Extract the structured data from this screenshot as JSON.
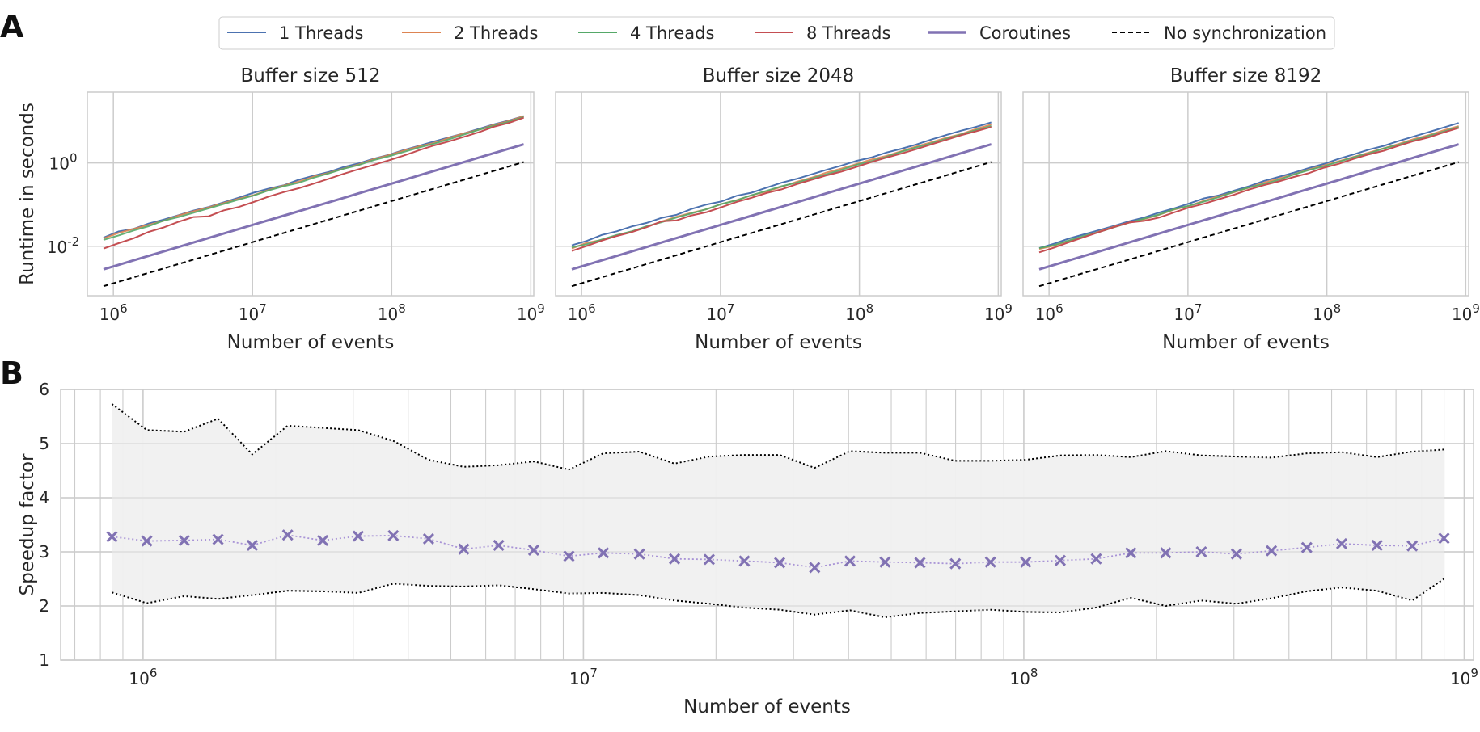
{
  "panel_labels": [
    "A",
    "B"
  ],
  "legend": [
    {
      "label": "1 Threads",
      "color": "#4c72b0",
      "style": "solid"
    },
    {
      "label": "2 Threads",
      "color": "#dd8452",
      "style": "solid"
    },
    {
      "label": "4 Threads",
      "color": "#55a868",
      "style": "solid"
    },
    {
      "label": "8 Threads",
      "color": "#c44e52",
      "style": "solid"
    },
    {
      "label": "Coroutines",
      "color": "#8172b3",
      "style": "solid-thick"
    },
    {
      "label": "No synchronization",
      "color": "#000000",
      "style": "dashed"
    }
  ],
  "chart_data": [
    {
      "type": "line",
      "title": "Buffer size 512",
      "xlabel": "Number of events",
      "ylabel": "Runtime in seconds",
      "xscale": "log",
      "yscale": "log",
      "xlim": [
        650000.0,
        1050000000.0
      ],
      "ylim": [
        0.00065,
        50
      ],
      "xticks": [
        {
          "value": 1000000.0,
          "label": "10^6"
        },
        {
          "value": 10000000.0,
          "label": "10^7"
        },
        {
          "value": 100000000.0,
          "label": "10^8"
        },
        {
          "value": 1000000000.0,
          "label": "10^9"
        }
      ],
      "yticks": [
        {
          "value": 0.01,
          "label": "10^-2"
        },
        {
          "value": 1,
          "label": "10^0"
        }
      ],
      "grid": true,
      "x_range": [
        850000.0,
        890000000.0
      ],
      "series": [
        {
          "name": "1 Threads",
          "y_range": [
            0.017,
            13.5
          ]
        },
        {
          "name": "2 Threads",
          "y_range": [
            0.016,
            13
          ]
        },
        {
          "name": "4 Threads",
          "y_range": [
            0.015,
            12.5
          ]
        },
        {
          "name": "8 Threads",
          "y_range": [
            0.009,
            12
          ]
        },
        {
          "name": "Coroutines",
          "y_range": [
            0.0028,
            2.8
          ]
        },
        {
          "name": "No synchronization",
          "y_range": [
            0.0011,
            1.05
          ]
        }
      ]
    },
    {
      "type": "line",
      "title": "Buffer size 2048",
      "xlabel": "Number of events",
      "xscale": "log",
      "yscale": "log",
      "xlim": [
        650000.0,
        1050000000.0
      ],
      "ylim": [
        0.00065,
        50
      ],
      "xticks": [
        {
          "value": 1000000.0,
          "label": "10^6"
        },
        {
          "value": 10000000.0,
          "label": "10^7"
        },
        {
          "value": 100000000.0,
          "label": "10^8"
        },
        {
          "value": 1000000000.0,
          "label": "10^9"
        }
      ],
      "grid": true,
      "x_range": [
        850000.0,
        890000000.0
      ],
      "series": [
        {
          "name": "1 Threads",
          "y_range": [
            0.011,
            9.5
          ]
        },
        {
          "name": "2 Threads",
          "y_range": [
            0.009,
            8.2
          ]
        },
        {
          "name": "4 Threads",
          "y_range": [
            0.009,
            7.8
          ]
        },
        {
          "name": "8 Threads",
          "y_range": [
            0.0075,
            7.4
          ]
        },
        {
          "name": "Coroutines",
          "y_range": [
            0.0028,
            2.8
          ]
        },
        {
          "name": "No synchronization",
          "y_range": [
            0.0011,
            1.05
          ]
        }
      ]
    },
    {
      "type": "line",
      "title": "Buffer size 8192",
      "xlabel": "Number of events",
      "xscale": "log",
      "yscale": "log",
      "xlim": [
        650000.0,
        1050000000.0
      ],
      "ylim": [
        0.00065,
        50
      ],
      "xticks": [
        {
          "value": 1000000.0,
          "label": "10^6"
        },
        {
          "value": 10000000.0,
          "label": "10^7"
        },
        {
          "value": 100000000.0,
          "label": "10^8"
        },
        {
          "value": 1000000000.0,
          "label": "10^9"
        }
      ],
      "grid": true,
      "x_range": [
        850000.0,
        890000000.0
      ],
      "series": [
        {
          "name": "1 Threads",
          "y_range": [
            0.009,
            9
          ]
        },
        {
          "name": "2 Threads",
          "y_range": [
            0.0085,
            7.6
          ]
        },
        {
          "name": "4 Threads",
          "y_range": [
            0.0085,
            7.3
          ]
        },
        {
          "name": "8 Threads",
          "y_range": [
            0.007,
            6.9
          ]
        },
        {
          "name": "Coroutines",
          "y_range": [
            0.0028,
            2.8
          ]
        },
        {
          "name": "No synchronization",
          "y_range": [
            0.0011,
            1.05
          ]
        }
      ]
    },
    {
      "type": "line",
      "xlabel": "Number of events",
      "ylabel": "Speedup factor",
      "xscale": "log",
      "xlim": [
        650000.0,
        1050000000.0
      ],
      "ylim": [
        1,
        6
      ],
      "xticks": [
        {
          "value": 1000000.0,
          "label": "10^6"
        },
        {
          "value": 10000000.0,
          "label": "10^7"
        },
        {
          "value": 100000000.0,
          "label": "10^8"
        },
        {
          "value": 1000000000.0,
          "label": "10^9"
        }
      ],
      "yticks": [
        1,
        2,
        3,
        4,
        5,
        6
      ],
      "grid": true,
      "shaded_band": {
        "color": "#f0f0f0"
      },
      "x": [
        850000,
        1020000,
        1240000,
        1480000,
        1770000,
        2130000,
        2560000,
        3080000,
        3700000,
        4450000,
        5350000,
        6420000,
        7710000,
        9270000,
        11100000,
        13400000,
        16100000,
        19300000,
        23200000,
        27900000,
        33500000,
        40300000,
        48400000,
        58100000,
        69900000,
        84000000,
        101000000,
        121000000,
        146000000,
        175000000,
        210000000,
        253000000,
        304000000,
        365000000,
        439000000,
        527000000,
        634000000,
        762000000,
        900000000
      ],
      "series": [
        {
          "name": "mean",
          "marker": "x",
          "color": "#8172b3",
          "values": [
            3.28,
            3.2,
            3.21,
            3.23,
            3.12,
            3.31,
            3.21,
            3.29,
            3.3,
            3.24,
            3.05,
            3.12,
            3.03,
            2.92,
            2.98,
            2.96,
            2.87,
            2.86,
            2.83,
            2.8,
            2.71,
            2.83,
            2.81,
            2.8,
            2.78,
            2.81,
            2.81,
            2.84,
            2.87,
            2.98,
            2.98,
            3.0,
            2.96,
            3.02,
            3.08,
            3.15,
            3.12,
            3.11,
            3.25
          ]
        },
        {
          "name": "upper",
          "style": "dotted",
          "color": "#000000",
          "values": [
            5.73,
            5.25,
            5.22,
            5.46,
            4.8,
            5.33,
            5.29,
            5.25,
            5.05,
            4.7,
            4.57,
            4.6,
            4.67,
            4.52,
            4.82,
            4.85,
            4.63,
            4.76,
            4.79,
            4.79,
            4.55,
            4.86,
            4.83,
            4.83,
            4.68,
            4.68,
            4.7,
            4.78,
            4.79,
            4.75,
            4.86,
            4.78,
            4.76,
            4.74,
            4.82,
            4.84,
            4.75,
            4.85,
            4.89
          ]
        },
        {
          "name": "lower",
          "style": "dotted",
          "color": "#000000",
          "values": [
            2.25,
            2.05,
            2.18,
            2.13,
            2.2,
            2.28,
            2.27,
            2.24,
            2.41,
            2.37,
            2.36,
            2.38,
            2.31,
            2.23,
            2.24,
            2.2,
            2.1,
            2.04,
            1.97,
            1.93,
            1.84,
            1.92,
            1.79,
            1.87,
            1.9,
            1.93,
            1.89,
            1.88,
            1.97,
            2.15,
            2.0,
            2.1,
            2.04,
            2.14,
            2.27,
            2.34,
            2.28,
            2.1,
            2.5
          ]
        }
      ]
    }
  ]
}
